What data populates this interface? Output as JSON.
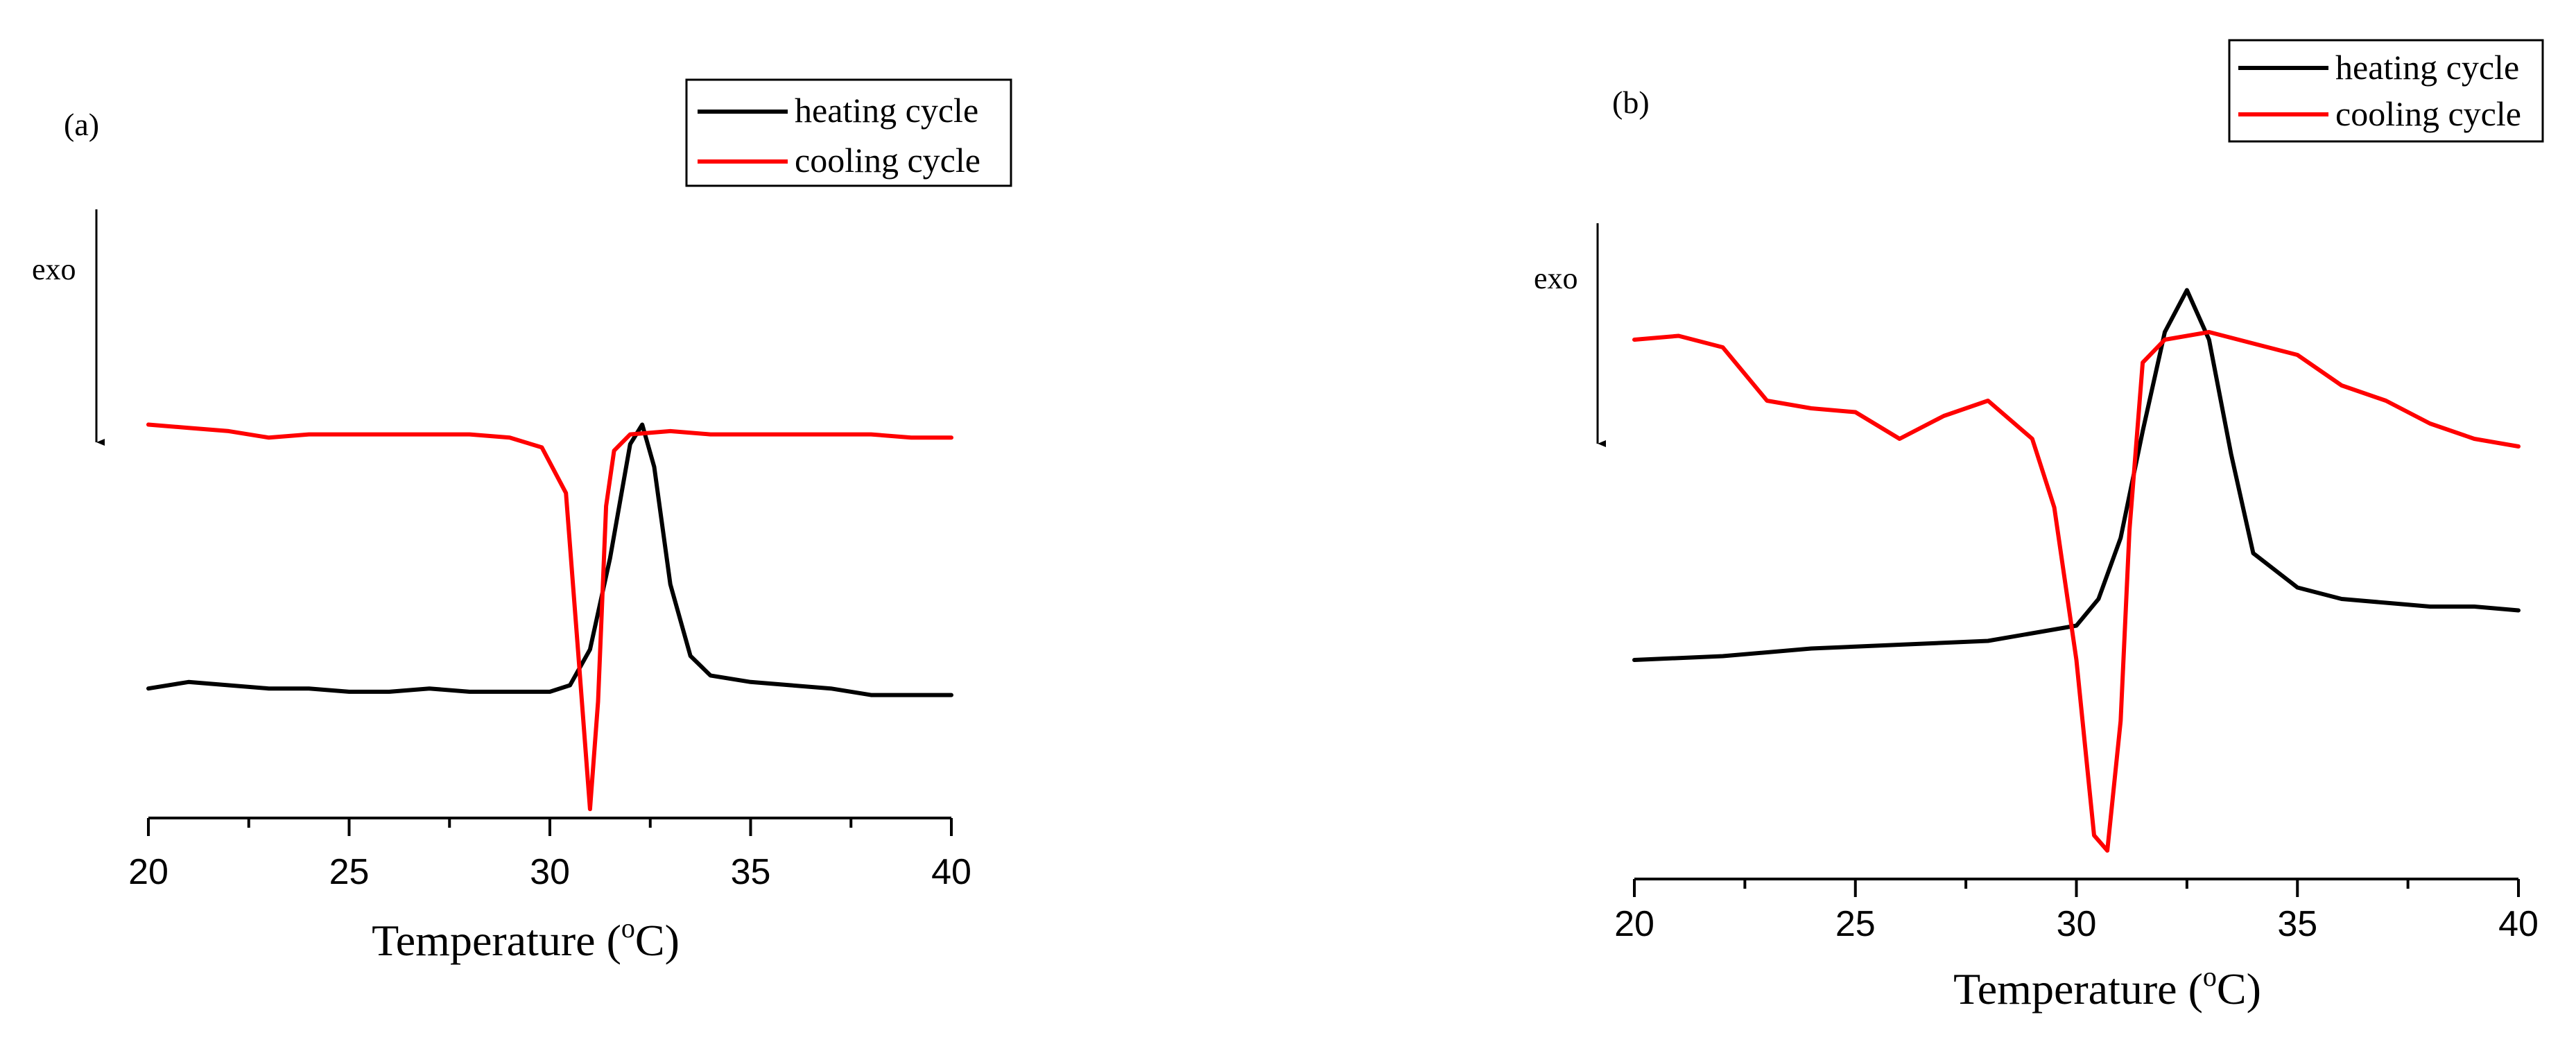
{
  "chart_data": [
    {
      "type": "line",
      "panel_label": "(a)",
      "xlabel_prefix": "Temperature (",
      "xlabel_sup": "o",
      "xlabel_suffix": "C)",
      "xlim": [
        20,
        40
      ],
      "xticks": [
        20,
        25,
        30,
        35,
        40
      ],
      "exo_label": "exo",
      "legend": {
        "position": "top-right"
      },
      "series": [
        {
          "name": "heating cycle",
          "color": "#000000",
          "x": [
            20,
            21,
            22,
            23,
            24,
            25,
            26,
            27,
            28,
            29,
            30,
            30.5,
            31,
            31.5,
            32,
            32.3,
            32.6,
            33,
            33.5,
            34,
            35,
            36,
            37,
            38,
            39,
            40
          ],
          "y": [
            0.78,
            0.77,
            0.775,
            0.78,
            0.78,
            0.785,
            0.785,
            0.78,
            0.785,
            0.785,
            0.785,
            0.775,
            0.72,
            0.58,
            0.405,
            0.375,
            0.44,
            0.62,
            0.73,
            0.76,
            0.77,
            0.775,
            0.78,
            0.79,
            0.79,
            0.79
          ],
          "ymin": -1.3,
          "ymax": 1.3
        },
        {
          "name": "cooling cycle",
          "color": "#ff0000",
          "x": [
            20,
            21,
            22,
            23,
            24,
            25,
            26,
            27,
            28,
            29,
            29.8,
            30.4,
            30.7,
            31,
            31.2,
            31.4,
            31.6,
            32,
            33,
            34,
            35,
            36,
            37,
            38,
            39,
            40
          ],
          "y": [
            0.375,
            0.38,
            0.385,
            0.395,
            0.39,
            0.39,
            0.39,
            0.39,
            0.39,
            0.395,
            0.41,
            0.48,
            0.72,
            0.965,
            0.8,
            0.5,
            0.415,
            0.39,
            0.385,
            0.39,
            0.39,
            0.39,
            0.39,
            0.39,
            0.395,
            0.395
          ],
          "ymin": -1.3,
          "ymax": 1.3
        }
      ]
    },
    {
      "type": "line",
      "panel_label": "(b)",
      "xlabel_prefix": "Temperature (",
      "xlabel_sup": "o",
      "xlabel_suffix": "C)",
      "xlim": [
        20,
        40
      ],
      "xticks": [
        20,
        25,
        30,
        35,
        40
      ],
      "exo_label": "exo",
      "legend": {
        "position": "top-right"
      },
      "series": [
        {
          "name": "heating cycle",
          "color": "#000000",
          "x": [
            20,
            22,
            24,
            26,
            28,
            29,
            30,
            30.5,
            31,
            31.5,
            32,
            32.5,
            33,
            33.5,
            34,
            35,
            36,
            37,
            38,
            39,
            40
          ],
          "y": [
            0.72,
            0.715,
            0.705,
            0.7,
            0.695,
            0.685,
            0.675,
            0.64,
            0.56,
            0.42,
            0.29,
            0.235,
            0.3,
            0.45,
            0.58,
            0.625,
            0.64,
            0.645,
            0.65,
            0.65,
            0.655
          ],
          "ymin": -1.3,
          "ymax": 1.3
        },
        {
          "name": "cooling cycle",
          "color": "#ff0000",
          "x": [
            20,
            21,
            22,
            23,
            24,
            25,
            26,
            27,
            28,
            29,
            29.5,
            30,
            30.4,
            30.7,
            31,
            31.2,
            31.5,
            32,
            33,
            34,
            35,
            36,
            37,
            38,
            39,
            40
          ],
          "y": [
            0.3,
            0.295,
            0.31,
            0.38,
            0.39,
            0.395,
            0.43,
            0.4,
            0.38,
            0.43,
            0.52,
            0.72,
            0.95,
            0.97,
            0.8,
            0.55,
            0.33,
            0.3,
            0.29,
            0.305,
            0.32,
            0.36,
            0.38,
            0.41,
            0.43,
            0.44
          ],
          "ymin": -1.3,
          "ymax": 1.3
        }
      ]
    }
  ]
}
